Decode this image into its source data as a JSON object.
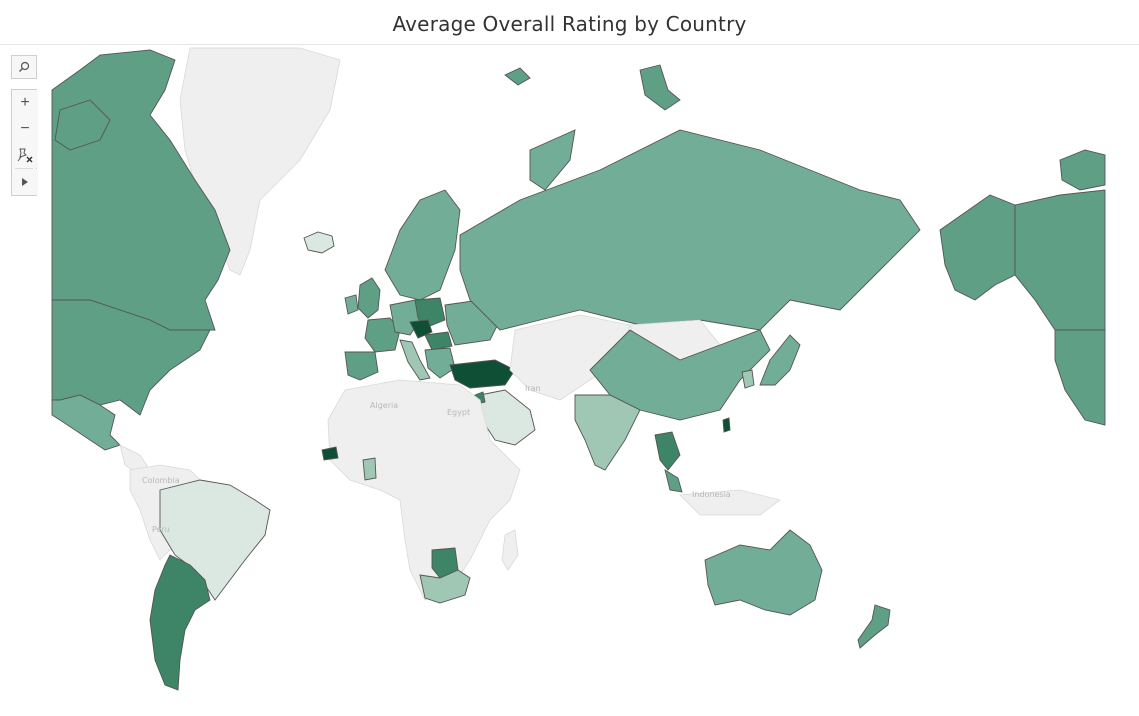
{
  "title": "Average Overall Rating by Country",
  "map_labels": {
    "algeria": "Algeria",
    "egypt": "Egypt",
    "iran": "Iran",
    "colombia": "Colombia",
    "peru": "Peru",
    "indonesia": "Indonesia"
  },
  "colors": {
    "no_data": "#efefef",
    "lightest": "#dbe7e1",
    "light": "#9fc7b3",
    "medium": "#72ae97",
    "medium_dark": "#5f9f86",
    "dark": "#3e8466",
    "darkest": "#0f4f35"
  },
  "toolbar": {
    "search_icon": "search-icon",
    "zoom_in": "+",
    "zoom_out": "−",
    "pin_icon": "pin-reset-icon",
    "expand_icon": "play-icon"
  }
}
